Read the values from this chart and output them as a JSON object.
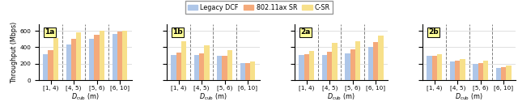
{
  "subplots": [
    {
      "label": "1a",
      "data": {
        "Legacy DCF": [
          318,
          430,
          498,
          565
        ],
        "802.11ax SR": [
          362,
          498,
          548,
          590
        ],
        "C-SR": [
          510,
          585,
          598,
          600
        ]
      }
    },
    {
      "label": "1b",
      "data": {
        "Legacy DCF": [
          305,
          305,
          292,
          205
        ],
        "802.11ax SR": [
          338,
          325,
          298,
          210
        ],
        "C-SR": [
          478,
          420,
          368,
          228
        ]
      }
    },
    {
      "label": "2a",
      "data": {
        "Legacy DCF": [
          310,
          310,
          330,
          408
        ],
        "802.11ax SR": [
          315,
          350,
          375,
          462
        ],
        "C-SR": [
          358,
          452,
          472,
          538
        ]
      }
    },
    {
      "label": "2b",
      "data": {
        "Legacy DCF": [
          292,
          228,
          198,
          148
        ],
        "802.11ax SR": [
          295,
          238,
          210,
          155
        ],
        "C-SR": [
          318,
          262,
          238,
          178
        ]
      }
    }
  ],
  "categories": [
    "[1, 4)",
    "[4, 5)",
    "[5, 6)",
    "[6, 10]"
  ],
  "xlabel": "$D_{\\mathrm{cub}}$ (m)",
  "ylabel": "Throughput (Mbps)",
  "ylim": [
    0,
    680
  ],
  "yticks": [
    0,
    200,
    400,
    600
  ],
  "colors": {
    "Legacy DCF": "#aec6e8",
    "802.11ax SR": "#f4a97a",
    "C-SR": "#f7e08a"
  },
  "legend_labels": [
    "Legacy DCF",
    "802.11ax SR",
    "C-SR"
  ],
  "bar_width": 0.22,
  "figsize": [
    6.4,
    1.36
  ],
  "dpi": 100,
  "label_color": "#ffff99"
}
